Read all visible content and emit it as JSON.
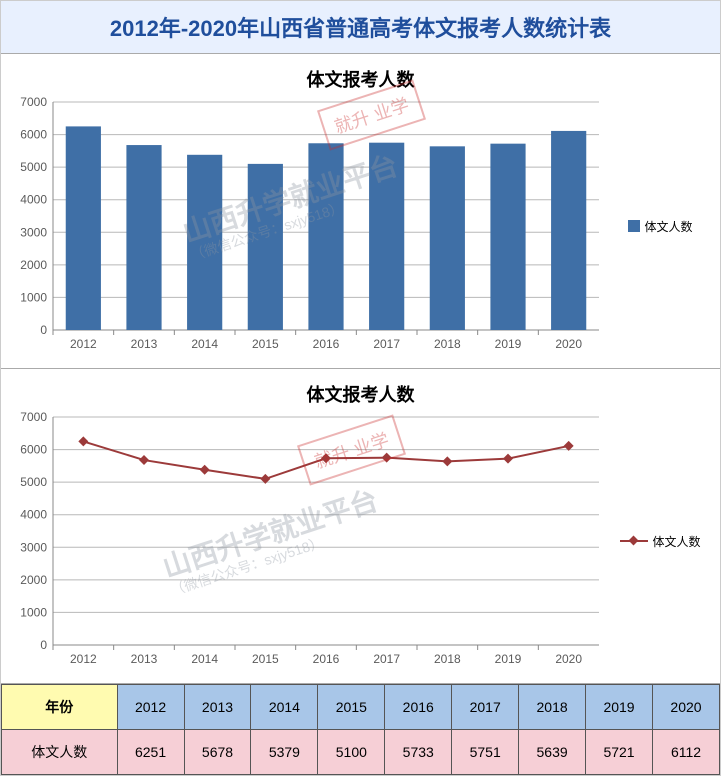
{
  "title": "2012年-2020年山西省普通高考体文报考人数统计表",
  "bar_chart": {
    "type": "bar",
    "title": "体文报考人数",
    "legend_label": "体文人数",
    "categories": [
      "2012",
      "2013",
      "2014",
      "2015",
      "2016",
      "2017",
      "2018",
      "2019",
      "2020"
    ],
    "values": [
      6251,
      5678,
      5379,
      5100,
      5733,
      5751,
      5639,
      5721,
      6112
    ],
    "bar_color": "#3f6fa6",
    "grid_color": "#b8b8b8",
    "axis_color": "#888888",
    "text_color": "#5a5a5a",
    "background_color": "#ffffff",
    "ylim": [
      0,
      7000
    ],
    "ytick_step": 1000,
    "bar_width_ratio": 0.58,
    "label_fontsize": 12,
    "title_fontsize": 18
  },
  "line_chart": {
    "type": "line",
    "title": "体文报考人数",
    "legend_label": "体文人数",
    "categories": [
      "2012",
      "2013",
      "2014",
      "2015",
      "2016",
      "2017",
      "2018",
      "2019",
      "2020"
    ],
    "values": [
      6251,
      5678,
      5379,
      5100,
      5733,
      5751,
      5639,
      5721,
      6112
    ],
    "line_color": "#9c3a3a",
    "marker_color": "#9c3a3a",
    "marker_shape": "diamond",
    "marker_size": 7,
    "line_width": 2,
    "grid_color": "#b8b8b8",
    "axis_color": "#888888",
    "text_color": "#5a5a5a",
    "background_color": "#ffffff",
    "ylim": [
      0,
      7000
    ],
    "ytick_step": 1000,
    "label_fontsize": 12,
    "title_fontsize": 18
  },
  "table": {
    "header_label": "年份",
    "row_label": "体文人数",
    "years": [
      "2012",
      "2013",
      "2014",
      "2015",
      "2016",
      "2017",
      "2018",
      "2019",
      "2020"
    ],
    "values": [
      "6251",
      "5678",
      "5379",
      "5100",
      "5733",
      "5751",
      "5639",
      "5721",
      "6112"
    ],
    "header_bg": "#fffbb0",
    "year_bg": "#a8c6e8",
    "value_bg": "#f6cfd6",
    "border_color": "#555555",
    "fontsize": 14
  },
  "watermark": {
    "stamp_text": "就升\n业学",
    "main_text": "山西升学就业平台",
    "sub_text": "（微信公众号：sxjy518）"
  }
}
